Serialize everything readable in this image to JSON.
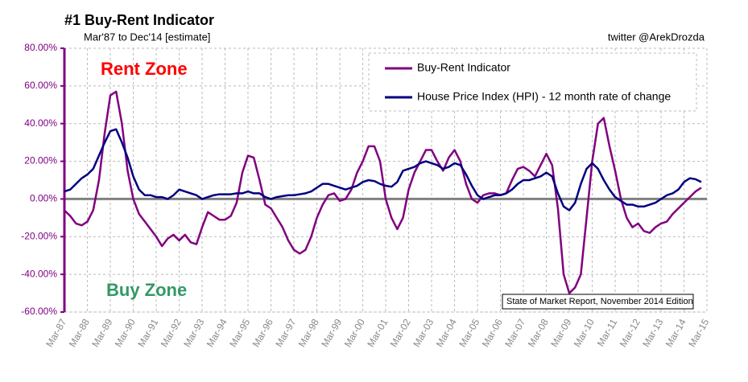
{
  "chart_data": {
    "type": "line",
    "title": "#1 Buy-Rent Indicator",
    "subtitle": "Mar'87 to Dec'14 [estimate]",
    "credit": "twitter @ArekDrozda",
    "annotations": [
      "Rent Zone",
      "Buy Zone",
      "State of Market Report, November 2014 Edition"
    ],
    "x": [
      "Mar-87",
      "Jun-87",
      "Sep-87",
      "Dec-87",
      "Mar-88",
      "Jun-88",
      "Sep-88",
      "Dec-88",
      "Mar-89",
      "Jun-89",
      "Sep-89",
      "Dec-89",
      "Mar-90",
      "Jun-90",
      "Sep-90",
      "Dec-90",
      "Mar-91",
      "Jun-91",
      "Sep-91",
      "Dec-91",
      "Mar-92",
      "Jun-92",
      "Sep-92",
      "Dec-92",
      "Mar-93",
      "Jun-93",
      "Sep-93",
      "Dec-93",
      "Mar-94",
      "Jun-94",
      "Sep-94",
      "Dec-94",
      "Mar-95",
      "Jun-95",
      "Sep-95",
      "Dec-95",
      "Mar-96",
      "Jun-96",
      "Sep-96",
      "Dec-96",
      "Mar-97",
      "Jun-97",
      "Sep-97",
      "Dec-97",
      "Mar-98",
      "Jun-98",
      "Sep-98",
      "Dec-98",
      "Mar-99",
      "Jun-99",
      "Sep-99",
      "Dec-99",
      "Mar-00",
      "Jun-00",
      "Sep-00",
      "Dec-00",
      "Mar-01",
      "Jun-01",
      "Sep-01",
      "Dec-01",
      "Mar-02",
      "Jun-02",
      "Sep-02",
      "Dec-02",
      "Mar-03",
      "Jun-03",
      "Sep-03",
      "Dec-03",
      "Mar-04",
      "Jun-04",
      "Sep-04",
      "Dec-04",
      "Mar-05",
      "Jun-05",
      "Sep-05",
      "Dec-05",
      "Mar-06",
      "Jun-06",
      "Sep-06",
      "Dec-06",
      "Mar-07",
      "Jun-07",
      "Sep-07",
      "Dec-07",
      "Mar-08",
      "Jun-08",
      "Sep-08",
      "Dec-08",
      "Mar-09",
      "Jun-09",
      "Sep-09",
      "Dec-09",
      "Mar-10",
      "Jun-10",
      "Sep-10",
      "Dec-10",
      "Mar-11",
      "Jun-11",
      "Sep-11",
      "Dec-11",
      "Mar-12",
      "Jun-12",
      "Sep-12",
      "Dec-12",
      "Mar-13",
      "Jun-13",
      "Sep-13",
      "Dec-13",
      "Mar-14",
      "Jun-14",
      "Sep-14",
      "Dec-14"
    ],
    "series": [
      {
        "name": "Buy-Rent Indicator",
        "color": "#800080",
        "values": [
          -6,
          -9,
          -13,
          -14,
          -12,
          -6,
          10,
          35,
          55,
          57,
          40,
          15,
          0,
          -8,
          -12,
          -16,
          -20,
          -25,
          -21,
          -19,
          -22,
          -19,
          -23,
          -24,
          -15,
          -7,
          -9,
          -11,
          -11,
          -9,
          -2,
          14,
          23,
          22,
          10,
          -3,
          -5,
          -10,
          -15,
          -22,
          -27,
          -29,
          -27,
          -20,
          -10,
          -3,
          2,
          3,
          -1,
          0,
          5,
          14,
          20,
          28,
          28,
          20,
          0,
          -10,
          -16,
          -10,
          5,
          14,
          20,
          26,
          26,
          20,
          15,
          22,
          26,
          20,
          8,
          0,
          -2,
          2,
          3,
          3,
          2,
          3,
          10,
          16,
          17,
          15,
          12,
          18,
          24,
          18,
          -5,
          -40,
          -50,
          -47,
          -40,
          -10,
          20,
          40,
          43,
          28,
          15,
          0,
          -10,
          -15,
          -13,
          -17,
          -18,
          -15,
          -13,
          -12,
          -8,
          -5,
          -2,
          1,
          4,
          6
        ]
      },
      {
        "name": "House Price Index (HPI) - 12 month rate of change",
        "color": "#000080",
        "values": [
          4,
          5,
          8,
          11,
          13,
          16,
          23,
          30,
          36,
          37,
          30,
          22,
          12,
          5,
          2,
          2,
          1,
          1,
          0,
          2,
          5,
          4,
          3,
          2,
          0,
          1,
          2,
          2.5,
          2.5,
          2.5,
          3,
          3,
          4,
          3,
          3,
          1,
          0,
          1,
          1.5,
          2,
          2,
          2.5,
          3,
          4,
          6,
          8,
          8,
          7,
          6,
          5,
          6,
          7,
          9,
          10,
          9.5,
          8,
          7,
          6.5,
          9,
          15,
          16,
          17,
          19,
          20,
          19,
          18,
          16,
          17,
          19,
          18,
          13,
          7,
          2,
          0,
          1,
          2,
          2,
          3,
          5,
          8,
          10,
          10,
          11,
          12,
          14,
          12,
          3,
          -4,
          -6,
          -2,
          8,
          16,
          19,
          16,
          10,
          5,
          1,
          -1,
          -3,
          -3,
          -4,
          -4,
          -3,
          -2,
          0,
          2,
          3,
          5,
          9,
          11,
          10.5,
          9
        ]
      }
    ],
    "xlim": [
      "Mar-87",
      "Mar-15"
    ],
    "xticks": [
      "Mar-87",
      "Mar-88",
      "Mar-89",
      "Mar-90",
      "Mar-91",
      "Mar-92",
      "Mar-93",
      "Mar-94",
      "Mar-95",
      "Mar-96",
      "Mar-97",
      "Mar-98",
      "Mar-99",
      "Mar-00",
      "Mar-01",
      "Mar-02",
      "Mar-03",
      "Mar-04",
      "Mar-05",
      "Mar-06",
      "Mar-07",
      "Mar-08",
      "Mar-09",
      "Mar-10",
      "Mar-11",
      "Mar-12",
      "Mar-13",
      "Mar-14",
      "Mar-15"
    ],
    "ylim": [
      -60,
      80
    ],
    "yticks": [
      {
        "value": 80,
        "label": "80.00%"
      },
      {
        "value": 60,
        "label": "60.00%"
      },
      {
        "value": 40,
        "label": "40.00%"
      },
      {
        "value": 20,
        "label": "20.00%"
      },
      {
        "value": 0,
        "label": "0.00%"
      },
      {
        "value": -20,
        "label": "-20.00%"
      },
      {
        "value": -40,
        "label": "-40.00%"
      },
      {
        "value": -60,
        "label": "-60.00%"
      }
    ],
    "grid": true,
    "legend": "top-right"
  }
}
